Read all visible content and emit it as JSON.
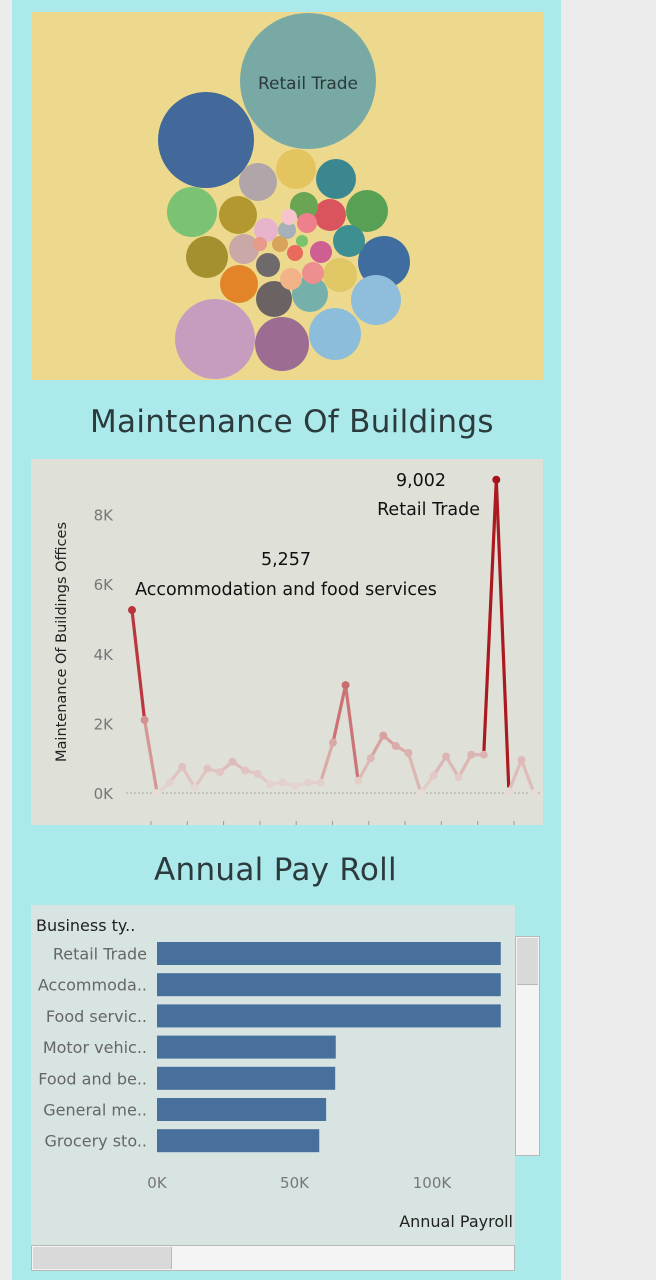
{
  "headings": {
    "maintenance": "Maintenance Of Buildings",
    "payroll": "Annual Pay Roll"
  },
  "chart_data": [
    {
      "type": "bubble",
      "labels": [
        "Retail Trade"
      ],
      "bubbles": [
        {
          "label": "Retail Trade",
          "color": "#79a9a4"
        },
        {
          "color": "#42699a"
        },
        {
          "color": "#3f6d9f"
        },
        {
          "color": "#c69cbf"
        },
        {
          "color": "#9c6c93"
        },
        {
          "color": "#8cbddb"
        },
        {
          "color": "#8fbedc"
        },
        {
          "color": "#7bc273"
        },
        {
          "color": "#58a054"
        },
        {
          "color": "#3a8790"
        },
        {
          "color": "#a59030"
        },
        {
          "color": "#b3972f"
        },
        {
          "color": "#e3c45e"
        },
        {
          "color": "#e48428"
        },
        {
          "color": "#6b6363"
        },
        {
          "color": "#b0a5a9"
        },
        {
          "color": "#76b0aa"
        },
        {
          "color": "#e0c766"
        },
        {
          "color": "#d9545c"
        },
        {
          "color": "#3e8f91"
        },
        {
          "color": "#c8a9a7"
        },
        {
          "color": "#6e6a6b"
        },
        {
          "color": "#6aa553"
        },
        {
          "color": "#f2b389"
        },
        {
          "color": "#ee8f8f"
        },
        {
          "color": "#cf5f93"
        },
        {
          "color": "#e8b4cc"
        },
        {
          "color": "#a6b0b8"
        },
        {
          "color": "#d8a35a"
        },
        {
          "color": "#e86a5d"
        },
        {
          "color": "#7ac36c"
        },
        {
          "color": "#ee7f8c"
        },
        {
          "color": "#f6c2cc"
        },
        {
          "color": "#e79a8a"
        }
      ]
    },
    {
      "type": "line",
      "ylabel": "Maintenance Of Buildings Offices",
      "yticks": [
        "0K",
        "2K",
        "4K",
        "6K",
        "8K"
      ],
      "ylim": [
        0,
        9500
      ],
      "values": [
        5257,
        2100,
        0,
        300,
        750,
        150,
        700,
        600,
        900,
        650,
        550,
        250,
        300,
        200,
        300,
        300,
        1450,
        3100,
        350,
        1000,
        1650,
        1350,
        1150,
        0,
        500,
        1050,
        450,
        1100,
        1100,
        9002,
        50,
        950,
        0
      ],
      "annotations": [
        {
          "value": "5,257",
          "label": "Accommodation and food services"
        },
        {
          "value": "9,002",
          "label": "Retail Trade"
        }
      ]
    },
    {
      "type": "bar",
      "orientation": "horizontal",
      "dim_header": "Business ty..",
      "categories": [
        "Retail Trade",
        "Accommoda..",
        "Food servic..",
        "Motor vehic..",
        "Food and be..",
        "General me..",
        "Grocery sto.."
      ],
      "values": [
        125000,
        125000,
        125000,
        65000,
        64800,
        61500,
        59000
      ],
      "xticks": [
        "0K",
        "50K",
        "100K"
      ],
      "xlim": [
        0,
        120000
      ],
      "xlabel": "Annual Payroll",
      "color": "#47709c"
    }
  ]
}
